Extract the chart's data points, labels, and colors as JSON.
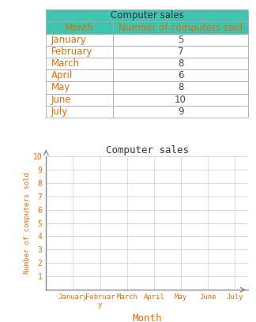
{
  "title": "Computer sales",
  "months": [
    "January",
    "February",
    "March",
    "April",
    "May",
    "June",
    "July"
  ],
  "values": [
    5,
    7,
    8,
    6,
    8,
    10,
    9
  ],
  "table_header_bg": "#40C4B0",
  "table_header_text": "Computer sales",
  "col_headers": [
    "Month",
    "Number of computers sold"
  ],
  "col_header_bg": "#40C4B0",
  "table_text_color": "#D4700A",
  "table_number_color": "#444444",
  "chart_title": "Computer sales",
  "chart_title_color": "#333333",
  "xlabel": "Month",
  "ylabel": "Number of computers sold",
  "axis_label_color": "#D4700A",
  "tick_label_color": "#D4700A",
  "ylim": [
    0,
    10
  ],
  "yticks": [
    1,
    2,
    3,
    4,
    5,
    6,
    7,
    8,
    9,
    10
  ],
  "grid_color": "#cccccc",
  "axis_color": "#888888",
  "background_color": "#ffffff",
  "table_border_color": "#aaaaaa",
  "table_font_size": 8.5,
  "chart_font_size": 8.0
}
